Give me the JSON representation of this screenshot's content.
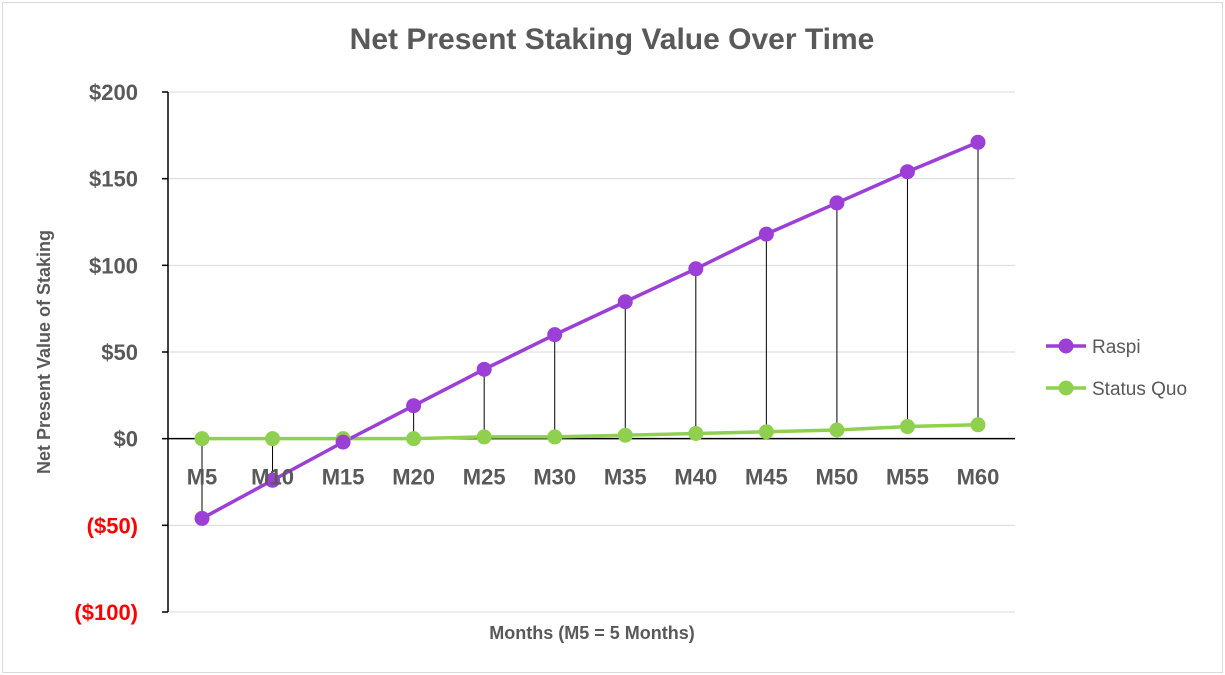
{
  "chart_data": {
    "type": "line",
    "title": "Net Present Staking Value Over Time",
    "xlabel": "Months (M5 = 5 Months)",
    "ylabel": "Net Present Value of Staking",
    "categories": [
      "M5",
      "M10",
      "M15",
      "M20",
      "M25",
      "M30",
      "M35",
      "M40",
      "M45",
      "M50",
      "M55",
      "M60"
    ],
    "ylim": [
      -100,
      200
    ],
    "yticks": [
      {
        "value": 200,
        "label": "$200"
      },
      {
        "value": 150,
        "label": "$150"
      },
      {
        "value": 100,
        "label": "$100"
      },
      {
        "value": 50,
        "label": "$50"
      },
      {
        "value": 0,
        "label": "$0"
      },
      {
        "value": -50,
        "label": "($50)"
      },
      {
        "value": -100,
        "label": "($100)"
      }
    ],
    "negative_tick_color": "#ff0000",
    "positive_tick_color": "#595959",
    "grid": true,
    "drop_lines": true,
    "legend_position": "right",
    "series": [
      {
        "name": "Raspi",
        "color": "#9b3fd6",
        "values": [
          -46,
          -24,
          -2,
          19,
          40,
          60,
          79,
          98,
          118,
          136,
          154,
          171
        ]
      },
      {
        "name": "Status Quo",
        "color": "#8fd14f",
        "values": [
          0,
          0,
          0,
          0,
          1,
          1,
          2,
          3,
          4,
          5,
          7,
          8
        ]
      }
    ]
  }
}
